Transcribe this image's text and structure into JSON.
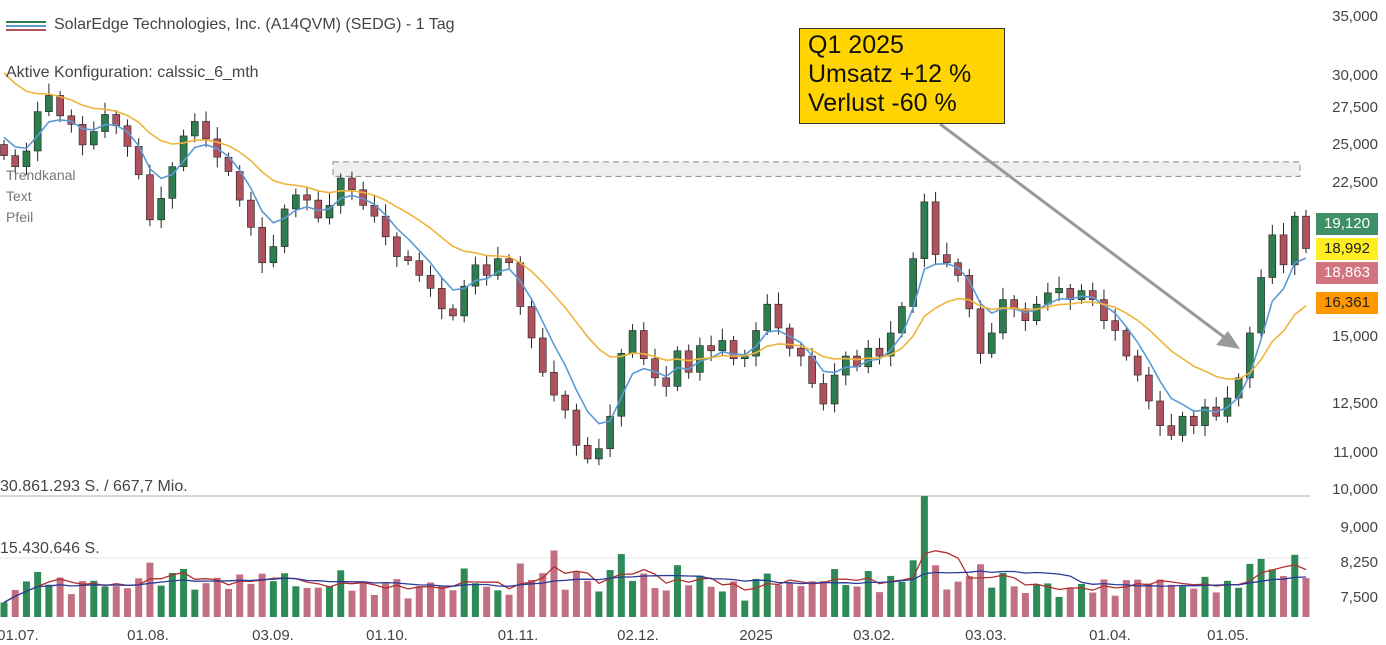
{
  "header": {
    "title": "SolarEdge Technologies, Inc. (A14QVM) (SEDG) - 1 Tag",
    "config": "Aktive Konfiguration: calssic_6_mth",
    "tools": [
      "Trendkanal",
      "Text",
      "Pfeil"
    ]
  },
  "callout": {
    "lines": [
      "Q1 2025",
      "Umsatz +12 %",
      "Verlust -60 %"
    ]
  },
  "volume": {
    "max_label": "30.861.293 S. / 667,7 Mio.",
    "mid_label": "15.430.646 S."
  },
  "colors": {
    "up": "#2e7d4f",
    "down": "#b0525e",
    "ma_fast": "#5b9bd5",
    "ma_slow": "#f0b43c",
    "vol_up": "#2e8b57",
    "vol_down": "#c07080",
    "vol_ma_red": "#b03030",
    "vol_ma_blue": "#2a3a9a",
    "callout_bg": "#ffd400"
  },
  "price_tags": [
    {
      "value": "19,120",
      "bg": "#3f8f68",
      "fg": "#ffffff"
    },
    {
      "value": "18,992",
      "bg": "#ffee22",
      "fg": "#222222"
    },
    {
      "value": "18,863",
      "bg": "#d27480",
      "fg": "#ffffff"
    },
    {
      "value": "16,361",
      "bg": "#ff9800",
      "fg": "#222222"
    }
  ],
  "chart_data": {
    "type": "candlestick",
    "title": "SolarEdge Technologies, Inc. (A14QVM) (SEDG) - 1 Tag",
    "y_scale": "log",
    "y_ticks": [
      "35,000",
      "30,000",
      "27,500",
      "25,000",
      "22,500",
      "15,000",
      "12,500",
      "11,000",
      "10,000",
      "9,000",
      "8,250",
      "7,500"
    ],
    "x_ticks": [
      "01.07.",
      "01.08.",
      "03.09.",
      "01.10.",
      "01.11.",
      "02.12.",
      "2025",
      "03.02.",
      "03.03.",
      "01.04.",
      "01.05."
    ],
    "resistance_zone": [
      22.9,
      23.8
    ],
    "closes": [
      24.2,
      23.5,
      24.5,
      27.2,
      28.4,
      26.9,
      26.3,
      24.9,
      25.8,
      27.0,
      26.2,
      24.8,
      23.0,
      20.4,
      21.6,
      23.5,
      25.5,
      26.5,
      25.3,
      24.1,
      23.2,
      21.5,
      20.0,
      18.2,
      19.0,
      21.0,
      21.8,
      21.5,
      20.5,
      21.2,
      22.8,
      22.1,
      21.2,
      20.6,
      19.5,
      18.5,
      18.3,
      17.6,
      17.0,
      16.1,
      15.8,
      17.1,
      18.1,
      17.6,
      18.4,
      18.2,
      16.2,
      14.9,
      13.6,
      12.8,
      12.3,
      11.2,
      10.8,
      11.1,
      12.1,
      14.3,
      15.2,
      14.1,
      13.4,
      13.1,
      14.4,
      13.6,
      14.6,
      14.4,
      14.8,
      14.1,
      14.2,
      15.2,
      16.3,
      15.3,
      14.5,
      14.2,
      13.2,
      12.5,
      13.5,
      14.2,
      13.8,
      14.5,
      14.2,
      15.1,
      16.2,
      18.4,
      21.4,
      18.6,
      18.2,
      17.6,
      16.1,
      14.3,
      15.1,
      16.5,
      16.1,
      15.6,
      16.3,
      16.8,
      17.0,
      16.5,
      16.9,
      16.5,
      15.6,
      15.2,
      14.2,
      13.5,
      12.6,
      11.8,
      11.5,
      12.1,
      11.8,
      12.4,
      12.1,
      12.7,
      13.4,
      15.1,
      17.5,
      19.6,
      18.1,
      20.6,
      18.9
    ]
  }
}
